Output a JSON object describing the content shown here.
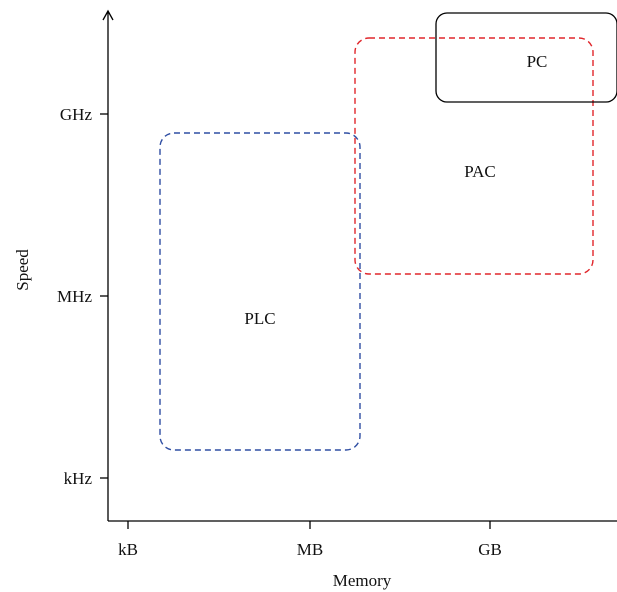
{
  "x_axis": {
    "label": "Memory",
    "ticks": [
      "kB",
      "MB",
      "GB"
    ]
  },
  "y_axis": {
    "label": "Speed",
    "ticks": [
      "kHz",
      "MHz",
      "GHz"
    ]
  },
  "regions": [
    {
      "label": "PLC",
      "line_style": "dashed",
      "color": "#2f4ea3"
    },
    {
      "label": "PAC",
      "line_style": "dashed",
      "color": "#e0262b"
    },
    {
      "label": "PC",
      "line_style": "solid",
      "color": "#000000"
    }
  ]
}
